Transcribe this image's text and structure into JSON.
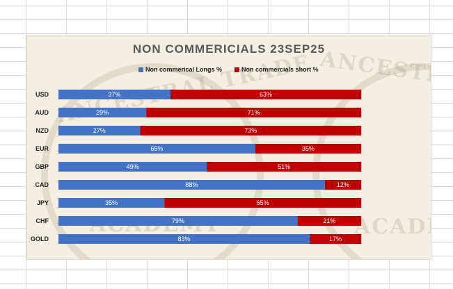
{
  "chart_data": {
    "type": "bar",
    "stacked": true,
    "orientation": "horizontal",
    "title": "NON COMMERICIALS 23SEP25",
    "categories": [
      "USD",
      "AUD",
      "NZD",
      "EUR",
      "GBP",
      "CAD",
      "JPY",
      "CHF",
      "GOLD"
    ],
    "series": [
      {
        "name": "Non commerical Longs %",
        "color": "#4472c4",
        "values": [
          37,
          29,
          27,
          65,
          49,
          88,
          35,
          79,
          83
        ],
        "labels": [
          "37%",
          "29%",
          "27%",
          "65%",
          "49%",
          "88%",
          "35%",
          "79%",
          "83%"
        ]
      },
      {
        "name": "Non commercials short %",
        "color": "#c00000",
        "values": [
          63,
          71,
          73,
          35,
          51,
          12,
          65,
          21,
          17
        ],
        "labels": [
          "63%",
          "71%",
          "73%",
          "35%",
          "51%",
          "12%",
          "65%",
          "21%",
          "17%"
        ]
      }
    ],
    "xlim": [
      0,
      100
    ],
    "legend_position": "top"
  },
  "watermark": {
    "left_text": "ANCESTRAL TRADE",
    "right_text": "ANCESTRAL T",
    "bottom_text": "ACADEMY",
    "bottom_right_text": "ACADEM"
  }
}
